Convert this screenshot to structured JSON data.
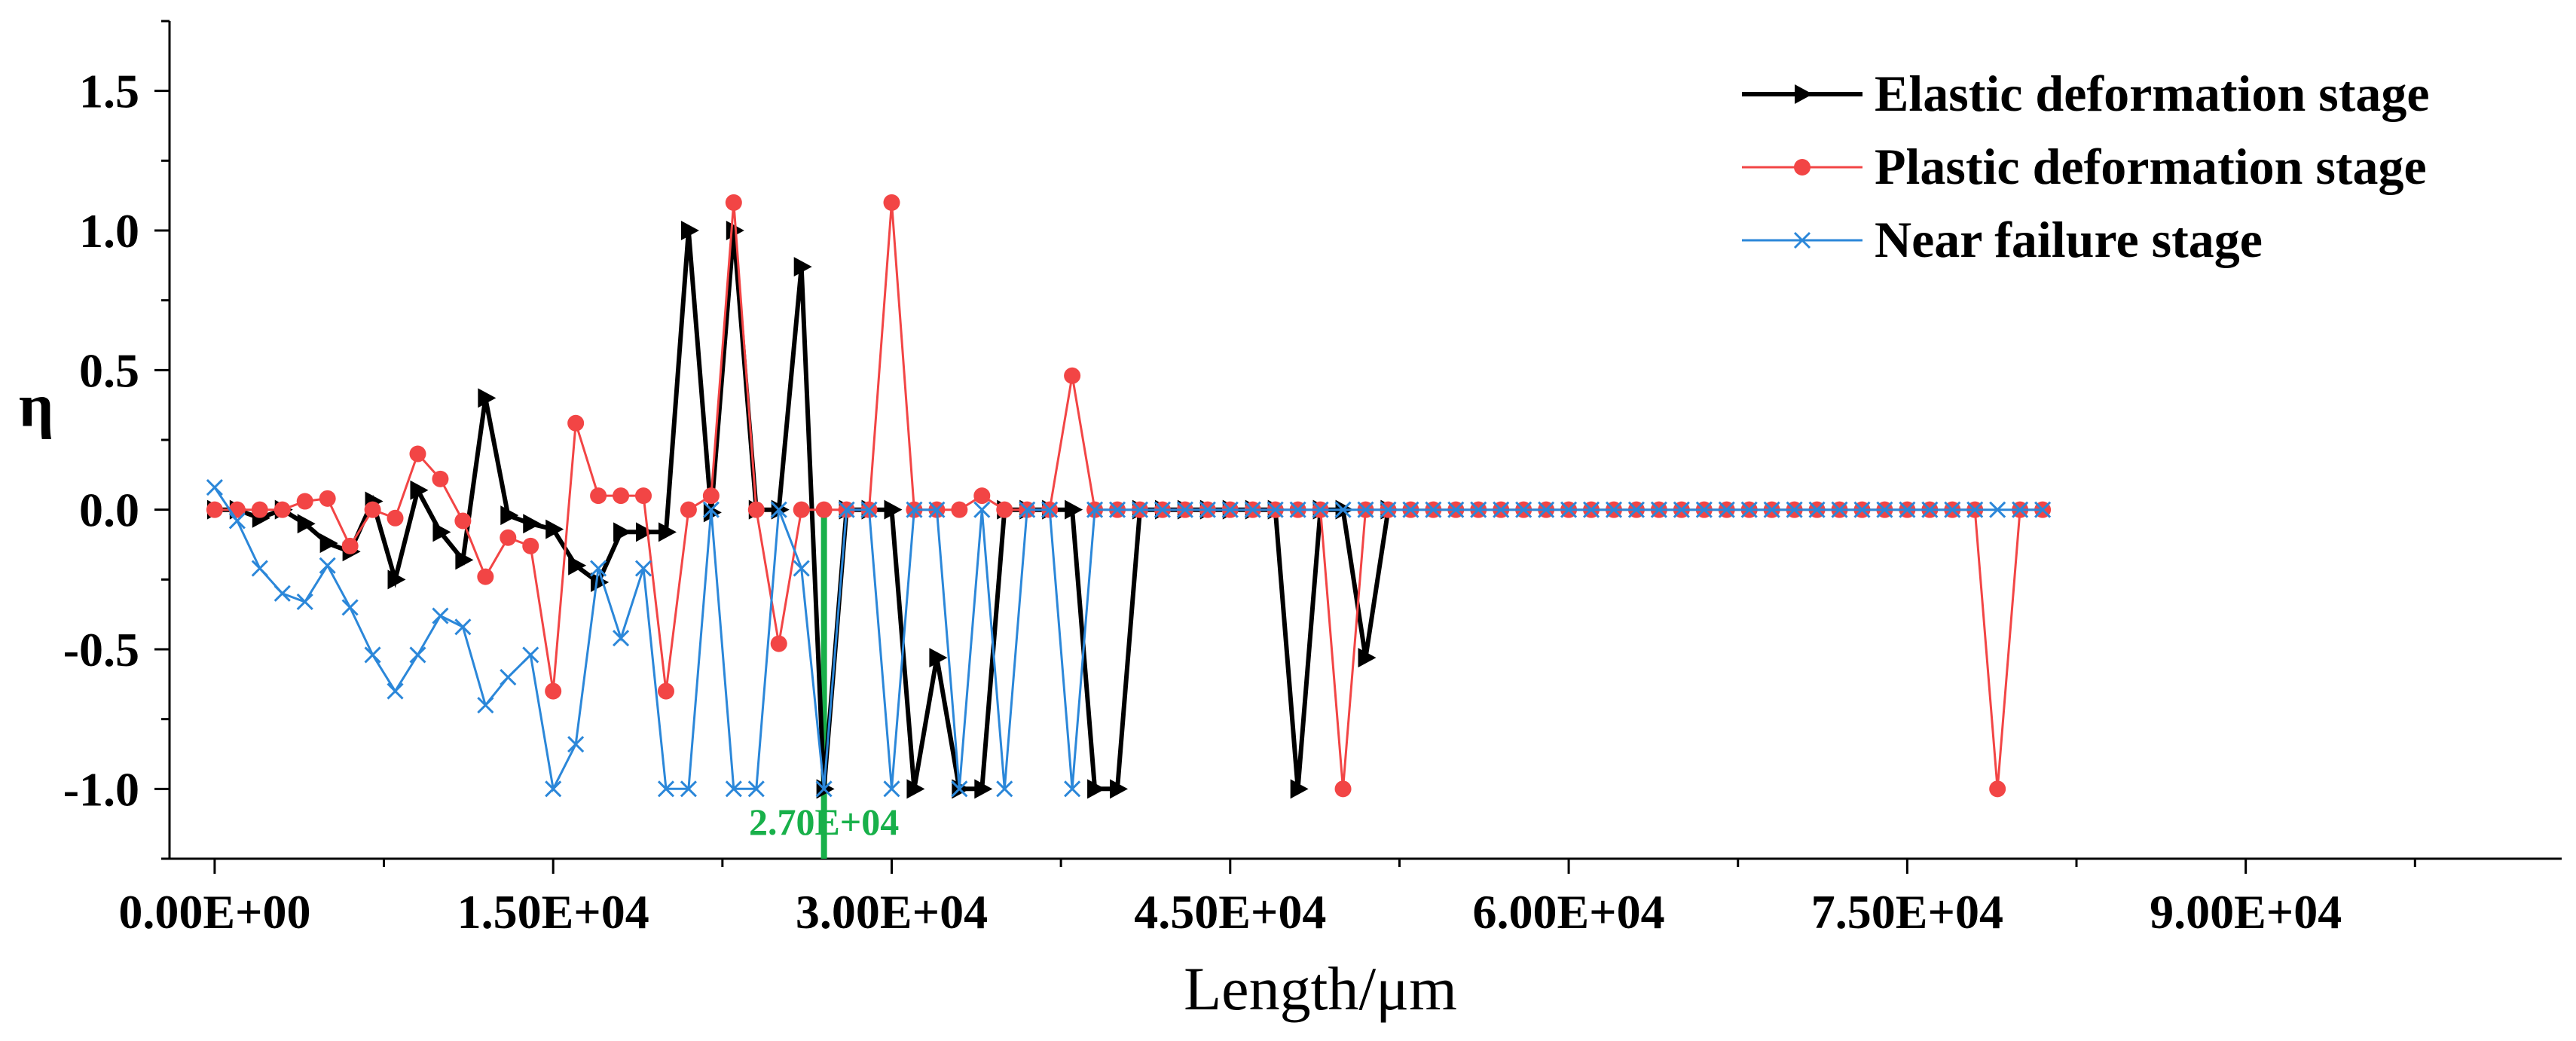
{
  "chart_data": {
    "type": "line",
    "title": "",
    "xlabel": "Length/μm",
    "ylabel": "η",
    "xlim": [
      -2000,
      104000
    ],
    "ylim": [
      -1.25,
      1.75
    ],
    "x_ticks": [
      0,
      15000,
      30000,
      45000,
      60000,
      75000,
      90000
    ],
    "x_tick_labels": [
      "0.00E+00",
      "1.50E+04",
      "3.00E+04",
      "4.50E+04",
      "6.00E+04",
      "7.50E+04",
      "9.00E+04"
    ],
    "y_ticks": [
      -1.0,
      -0.5,
      0.0,
      0.5,
      1.0,
      1.5
    ],
    "y_tick_labels": [
      "-1.0",
      "-0.5",
      "0.0",
      "0.5",
      "1.0",
      "1.5"
    ],
    "grid": false,
    "legend_position": "top-right",
    "marker_line": {
      "x": 27000,
      "label": "2.70E+04",
      "color": "#18b04a"
    },
    "series": [
      {
        "name": "Elastic deformation stage",
        "color": "#000000",
        "marker": "triangle-right",
        "points": [
          [
            0,
            0
          ],
          [
            1000,
            0
          ],
          [
            2000,
            -0.03
          ],
          [
            3000,
            0
          ],
          [
            4000,
            -0.05
          ],
          [
            5000,
            -0.12
          ],
          [
            6000,
            -0.15
          ],
          [
            7000,
            0.03
          ],
          [
            8000,
            -0.25
          ],
          [
            9000,
            0.07
          ],
          [
            10000,
            -0.08
          ],
          [
            11000,
            -0.18
          ],
          [
            12000,
            0.4
          ],
          [
            13000,
            -0.02
          ],
          [
            14000,
            -0.05
          ],
          [
            15000,
            -0.07
          ],
          [
            16000,
            -0.2
          ],
          [
            17000,
            -0.26
          ],
          [
            18000,
            -0.08
          ],
          [
            19000,
            -0.08
          ],
          [
            20000,
            -0.08
          ],
          [
            21000,
            1.0
          ],
          [
            22000,
            -0.01
          ],
          [
            23000,
            1.0
          ],
          [
            24000,
            0
          ],
          [
            25000,
            0
          ],
          [
            26000,
            0.87
          ],
          [
            27000,
            -1.0
          ],
          [
            28000,
            0
          ],
          [
            29000,
            0
          ],
          [
            30000,
            0
          ],
          [
            31000,
            -1.0
          ],
          [
            32000,
            -0.53
          ],
          [
            33000,
            -1.0
          ],
          [
            34000,
            -1.0
          ],
          [
            35000,
            0
          ],
          [
            36000,
            0
          ],
          [
            37000,
            0
          ],
          [
            38000,
            0
          ],
          [
            39000,
            -1.0
          ],
          [
            40000,
            -1.0
          ],
          [
            41000,
            0
          ],
          [
            42000,
            0
          ],
          [
            43000,
            0
          ],
          [
            44000,
            0
          ],
          [
            45000,
            0
          ],
          [
            46000,
            0
          ],
          [
            47000,
            0
          ],
          [
            48000,
            -1.0
          ],
          [
            49000,
            0
          ],
          [
            50000,
            0
          ],
          [
            51000,
            -0.53
          ],
          [
            52000,
            0
          ]
        ]
      },
      {
        "name": "Plastic deformation stage",
        "color": "#f24545",
        "marker": "circle",
        "points": [
          [
            0,
            0
          ],
          [
            1000,
            0
          ],
          [
            2000,
            0
          ],
          [
            3000,
            0
          ],
          [
            4000,
            0.03
          ],
          [
            5000,
            0.04
          ],
          [
            6000,
            -0.13
          ],
          [
            7000,
            0
          ],
          [
            8000,
            -0.03
          ],
          [
            9000,
            0.2
          ],
          [
            10000,
            0.11
          ],
          [
            11000,
            -0.04
          ],
          [
            12000,
            -0.24
          ],
          [
            13000,
            -0.1
          ],
          [
            14000,
            -0.13
          ],
          [
            15000,
            -0.65
          ],
          [
            16000,
            0.31
          ],
          [
            17000,
            0.05
          ],
          [
            18000,
            0.05
          ],
          [
            19000,
            0.05
          ],
          [
            20000,
            -0.65
          ],
          [
            21000,
            0
          ],
          [
            22000,
            0.05
          ],
          [
            23000,
            1.1
          ],
          [
            24000,
            0
          ],
          [
            25000,
            -0.48
          ],
          [
            26000,
            0
          ],
          [
            27000,
            0
          ],
          [
            28000,
            0
          ],
          [
            29000,
            0
          ],
          [
            30000,
            1.1
          ],
          [
            31000,
            0
          ],
          [
            32000,
            0
          ],
          [
            33000,
            0
          ],
          [
            34000,
            0.05
          ],
          [
            35000,
            0
          ],
          [
            36000,
            0
          ],
          [
            37000,
            0
          ],
          [
            38000,
            0.48
          ],
          [
            39000,
            0
          ],
          [
            40000,
            0
          ],
          [
            41000,
            0
          ],
          [
            42000,
            0
          ],
          [
            43000,
            0
          ],
          [
            44000,
            0
          ],
          [
            45000,
            0
          ],
          [
            46000,
            0
          ],
          [
            47000,
            0
          ],
          [
            48000,
            0
          ],
          [
            49000,
            0
          ],
          [
            50000,
            -1.0
          ],
          [
            51000,
            0
          ],
          [
            52000,
            0
          ],
          [
            53000,
            0
          ],
          [
            54000,
            0
          ],
          [
            55000,
            0
          ],
          [
            56000,
            0
          ],
          [
            57000,
            0
          ],
          [
            58000,
            0
          ],
          [
            59000,
            0
          ],
          [
            60000,
            0
          ],
          [
            61000,
            0
          ],
          [
            62000,
            0
          ],
          [
            63000,
            0
          ],
          [
            64000,
            0
          ],
          [
            65000,
            0
          ],
          [
            66000,
            0
          ],
          [
            67000,
            0
          ],
          [
            68000,
            0
          ],
          [
            69000,
            0
          ],
          [
            70000,
            0
          ],
          [
            71000,
            0
          ],
          [
            72000,
            0
          ],
          [
            73000,
            0
          ],
          [
            74000,
            0
          ],
          [
            75000,
            0
          ],
          [
            76000,
            0
          ],
          [
            77000,
            0
          ],
          [
            78000,
            0
          ],
          [
            79000,
            -1.0
          ],
          [
            80000,
            0
          ],
          [
            81000,
            0
          ]
        ]
      },
      {
        "name": "Near failure stage",
        "color": "#2b87d9",
        "marker": "x",
        "points": [
          [
            0,
            0.08
          ],
          [
            1000,
            -0.04
          ],
          [
            2000,
            -0.21
          ],
          [
            3000,
            -0.3
          ],
          [
            4000,
            -0.33
          ],
          [
            5000,
            -0.2
          ],
          [
            6000,
            -0.35
          ],
          [
            7000,
            -0.52
          ],
          [
            8000,
            -0.65
          ],
          [
            9000,
            -0.52
          ],
          [
            10000,
            -0.38
          ],
          [
            11000,
            -0.42
          ],
          [
            12000,
            -0.7
          ],
          [
            13000,
            -0.6
          ],
          [
            14000,
            -0.52
          ],
          [
            15000,
            -1.0
          ],
          [
            16000,
            -0.84
          ],
          [
            17000,
            -0.21
          ],
          [
            18000,
            -0.46
          ],
          [
            19000,
            -0.21
          ],
          [
            20000,
            -1.0
          ],
          [
            21000,
            -1.0
          ],
          [
            22000,
            0
          ],
          [
            23000,
            -1.0
          ],
          [
            24000,
            -1.0
          ],
          [
            25000,
            0
          ],
          [
            26000,
            -0.21
          ],
          [
            27000,
            -1.0
          ],
          [
            28000,
            0
          ],
          [
            29000,
            0
          ],
          [
            30000,
            -1.0
          ],
          [
            31000,
            0
          ],
          [
            32000,
            0
          ],
          [
            33000,
            -1.0
          ],
          [
            34000,
            0
          ],
          [
            35000,
            -1.0
          ],
          [
            36000,
            0
          ],
          [
            37000,
            0
          ],
          [
            38000,
            -1.0
          ],
          [
            39000,
            0
          ],
          [
            40000,
            0
          ],
          [
            41000,
            0
          ],
          [
            42000,
            0
          ],
          [
            43000,
            0
          ],
          [
            44000,
            0
          ],
          [
            45000,
            0
          ],
          [
            46000,
            0
          ],
          [
            47000,
            0
          ],
          [
            48000,
            0
          ],
          [
            49000,
            0
          ],
          [
            50000,
            0
          ],
          [
            51000,
            0
          ],
          [
            52000,
            0
          ],
          [
            53000,
            0
          ],
          [
            54000,
            0
          ],
          [
            55000,
            0
          ],
          [
            56000,
            0
          ],
          [
            57000,
            0
          ],
          [
            58000,
            0
          ],
          [
            59000,
            0
          ],
          [
            60000,
            0
          ],
          [
            61000,
            0
          ],
          [
            62000,
            0
          ],
          [
            63000,
            0
          ],
          [
            64000,
            0
          ],
          [
            65000,
            0
          ],
          [
            66000,
            0
          ],
          [
            67000,
            0
          ],
          [
            68000,
            0
          ],
          [
            69000,
            0
          ],
          [
            70000,
            0
          ],
          [
            71000,
            0
          ],
          [
            72000,
            0
          ],
          [
            73000,
            0
          ],
          [
            74000,
            0
          ],
          [
            75000,
            0
          ],
          [
            76000,
            0
          ],
          [
            77000,
            0
          ],
          [
            78000,
            0
          ],
          [
            79000,
            0
          ],
          [
            80000,
            0
          ],
          [
            81000,
            0
          ]
        ]
      }
    ]
  }
}
